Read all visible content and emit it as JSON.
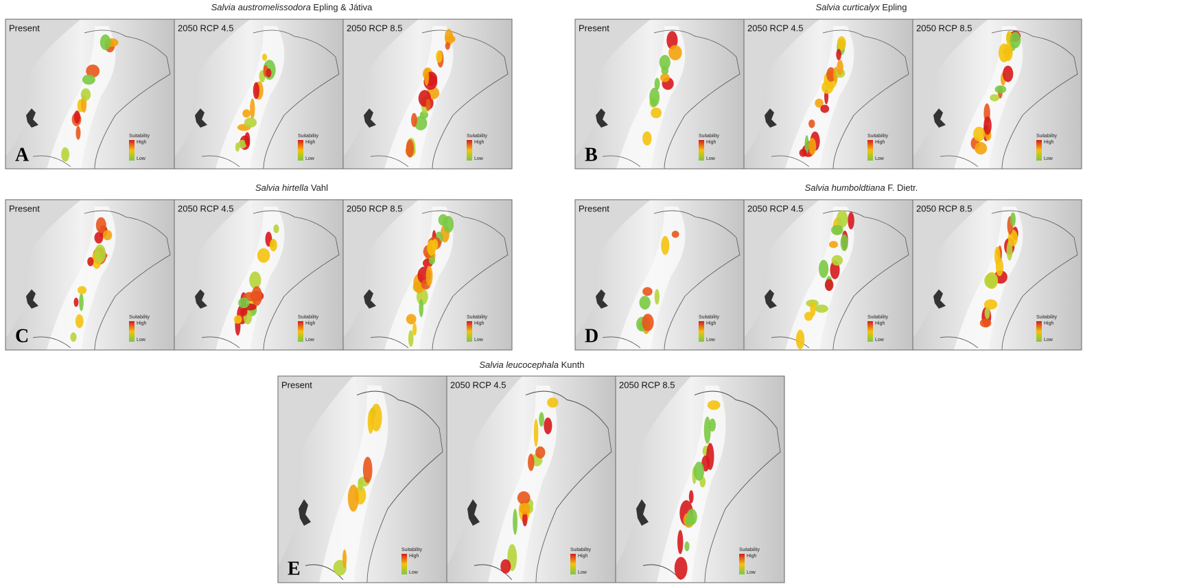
{
  "scenarios": [
    "Present",
    "2050 RCP 4.5",
    "2050 RCP 8.5"
  ],
  "legend": {
    "title": "Suitability",
    "high": "High",
    "low": "Low"
  },
  "panels": [
    {
      "letter": "A",
      "species": "Salvia austromelissodora",
      "authority": "Epling & Játiva"
    },
    {
      "letter": "B",
      "species": "Salvia curticalyx",
      "authority": "Epling"
    },
    {
      "letter": "C",
      "species": "Salvia hirtella",
      "authority": "Vahl"
    },
    {
      "letter": "D",
      "species": "Salvia humboldtiana",
      "authority": "F. Dietr."
    },
    {
      "letter": "E",
      "species": "Salvia leucocephala",
      "authority": "Kunth"
    }
  ]
}
